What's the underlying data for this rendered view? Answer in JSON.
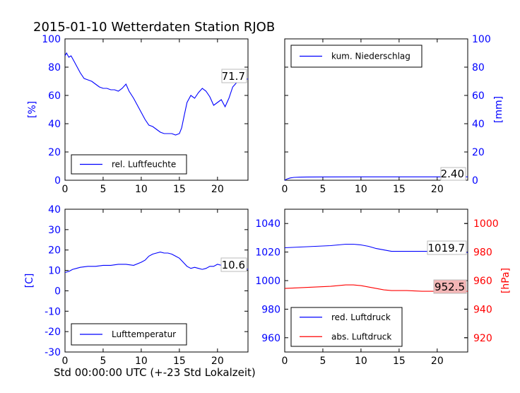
{
  "figure_title": "2015-01-10 Wetterdaten Station RJOB",
  "bottom_xlabel": "Std 00:00:00 UTC (+-23 Std Lokalzeit)",
  "colors": {
    "blue": "#0000ff",
    "red": "#ff0000",
    "label_box_red": "#f4b6b6"
  },
  "chart_data": [
    {
      "id": "humidity",
      "type": "line",
      "xlim": [
        0,
        24
      ],
      "ylim": [
        0,
        100
      ],
      "xticks": [
        0,
        5,
        10,
        15,
        20
      ],
      "yticks": [
        0,
        20,
        40,
        60,
        80,
        100
      ],
      "ylabel": "[%]",
      "ylabel_color": "#0000ff",
      "ytick_color": "#0000ff",
      "axis_side": "left",
      "legend_position": "lower-left",
      "series": [
        {
          "name": "rel. Luftfeuchte",
          "color": "#0000ff",
          "x": [
            0,
            0.2,
            0.5,
            0.8,
            1.2,
            1.6,
            2.0,
            2.5,
            3.0,
            3.5,
            4.0,
            4.5,
            5.0,
            5.5,
            6.0,
            6.5,
            7.0,
            7.5,
            8.0,
            8.4,
            9.0,
            9.5,
            10.0,
            10.5,
            11.0,
            11.5,
            12.0,
            12.5,
            13.0,
            13.5,
            14.0,
            14.5,
            15.0,
            15.3,
            15.6,
            16.0,
            16.5,
            17.0,
            17.5,
            18.0,
            18.5,
            19.0,
            19.5,
            20.0,
            20.5,
            21.0,
            21.5,
            22.0,
            22.5,
            23.0,
            23.5,
            24.0
          ],
          "y": [
            88,
            90,
            87,
            88,
            84,
            80,
            76,
            72,
            71,
            70,
            68,
            66,
            65,
            65,
            64,
            64,
            63,
            65,
            68,
            63,
            58,
            53,
            48,
            43,
            39,
            38,
            36,
            34,
            33,
            33,
            33,
            32,
            33,
            37,
            45,
            55,
            60,
            58,
            62,
            65,
            63,
            59,
            53,
            55,
            57,
            52,
            58,
            66,
            69,
            70,
            71,
            71.7
          ]
        }
      ],
      "end_label": "71.7"
    },
    {
      "id": "precip",
      "type": "line",
      "xlim": [
        0,
        24
      ],
      "ylim": [
        0,
        100
      ],
      "xticks": [
        0,
        5,
        10,
        15,
        20
      ],
      "yticks": [
        0,
        20,
        40,
        60,
        80,
        100
      ],
      "ylabel": "[mm]",
      "ylabel_color": "#0000ff",
      "ytick_color": "#0000ff",
      "axis_side": "right",
      "legend_position": "top-left",
      "series": [
        {
          "name": "kum. Niederschlag",
          "color": "#0000ff",
          "x": [
            0,
            0.3,
            0.7,
            1.2,
            2.0,
            3.0,
            5.0,
            10.0,
            15.0,
            20.0,
            24.0
          ],
          "y": [
            0,
            0.9,
            1.6,
            2.0,
            2.2,
            2.3,
            2.35,
            2.4,
            2.4,
            2.4,
            2.4
          ]
        }
      ],
      "end_label": "2.40"
    },
    {
      "id": "temperature",
      "type": "line",
      "xlim": [
        0,
        24
      ],
      "ylim": [
        -30,
        40
      ],
      "xticks": [
        0,
        5,
        10,
        15,
        20
      ],
      "yticks": [
        -30,
        -20,
        -10,
        0,
        10,
        20,
        30,
        40
      ],
      "ylabel": "[C]",
      "ylabel_color": "#0000ff",
      "ytick_color": "#0000ff",
      "axis_side": "left",
      "legend_position": "lower-left",
      "series": [
        {
          "name": "Lufttemperatur",
          "color": "#0000ff",
          "x": [
            0,
            0.5,
            1.0,
            1.5,
            2.0,
            3.0,
            4.0,
            5.0,
            6.0,
            7.0,
            8.0,
            9.0,
            10.0,
            10.5,
            11.0,
            11.5,
            12.0,
            12.5,
            13.0,
            13.5,
            14.0,
            14.5,
            15.0,
            15.5,
            16.0,
            16.5,
            17.0,
            17.5,
            18.0,
            18.5,
            19.0,
            19.5,
            20.0,
            20.5,
            21.0,
            21.5,
            22.0,
            22.5,
            23.0,
            23.5,
            24.0
          ],
          "y": [
            9,
            9.5,
            10.5,
            11,
            11.5,
            12,
            12,
            12.5,
            12.5,
            13,
            13,
            12.5,
            14,
            15,
            17,
            18,
            18.5,
            19,
            18.5,
            18.5,
            18,
            17,
            16,
            14,
            12,
            11,
            11.5,
            11,
            10.5,
            11,
            12,
            12,
            13,
            12.5,
            12,
            11.5,
            11,
            11,
            10.8,
            10.6,
            10.6
          ]
        }
      ],
      "end_label": "10.6"
    },
    {
      "id": "pressure",
      "type": "line",
      "xlim": [
        0,
        24
      ],
      "ylim": [
        950,
        1050
      ],
      "yticks": [
        960,
        980,
        1000,
        1020,
        1040
      ],
      "xticks": [
        0,
        5,
        10,
        15,
        20
      ],
      "ytick_color": "#0000ff",
      "axis_side": "left",
      "secondary_axis": {
        "ylim": [
          910,
          1010
        ],
        "yticks": [
          920,
          940,
          960,
          980,
          1000
        ],
        "ylabel": "[hPa]",
        "color": "#ff0000"
      },
      "legend_position": "lower-left",
      "series": [
        {
          "name": "red. Luftdruck",
          "color": "#0000ff",
          "axis": "left",
          "x": [
            0,
            2,
            4,
            6,
            8,
            9,
            10,
            11,
            12,
            13,
            14,
            16,
            18,
            20,
            22,
            24
          ],
          "y": [
            1023,
            1023.5,
            1024,
            1024.5,
            1025.5,
            1025.5,
            1025,
            1024,
            1022.5,
            1021.5,
            1020.5,
            1020.5,
            1020.5,
            1020.5,
            1020,
            1019.7
          ]
        },
        {
          "name": "abs. Luftdruck",
          "color": "#ff0000",
          "axis": "right",
          "x": [
            0,
            2,
            4,
            6,
            8,
            9,
            10,
            11,
            12,
            13,
            14,
            16,
            18,
            20,
            22,
            24
          ],
          "y": [
            954.5,
            955,
            955.5,
            956,
            957,
            957,
            956.5,
            955.5,
            954.5,
            953.5,
            953,
            953,
            952.5,
            952.5,
            952.5,
            952.5
          ]
        }
      ],
      "end_labels": [
        "1019.7",
        "952.5"
      ]
    }
  ]
}
